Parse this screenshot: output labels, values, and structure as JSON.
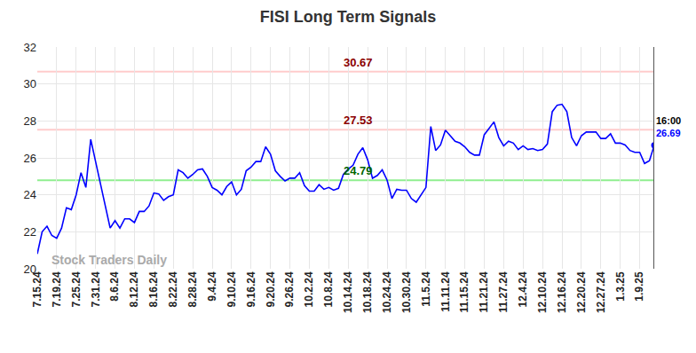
{
  "chart_data": {
    "type": "line",
    "title": "FISI Long Term Signals",
    "categories": [
      "7.15.24",
      null,
      null,
      null,
      "7.19.24",
      null,
      null,
      null,
      "7.25.24",
      null,
      null,
      null,
      "7.31.24",
      null,
      null,
      null,
      "8.6.24",
      null,
      null,
      null,
      "8.12.24",
      null,
      null,
      null,
      "8.16.24",
      null,
      null,
      null,
      "8.22.24",
      null,
      null,
      null,
      "8.28.24",
      null,
      null,
      null,
      "9.4.24",
      null,
      null,
      null,
      "9.10.24",
      null,
      null,
      null,
      "9.16.24",
      null,
      null,
      null,
      "9.20.24",
      null,
      null,
      null,
      "9.26.24",
      null,
      null,
      null,
      "10.2.24",
      null,
      null,
      null,
      "10.8.24",
      null,
      null,
      null,
      "10.14.24",
      null,
      null,
      null,
      "10.18.24",
      null,
      null,
      null,
      "10.24.24",
      null,
      null,
      null,
      "10.30.24",
      null,
      null,
      null,
      "11.5.24",
      null,
      null,
      null,
      "11.11.24",
      null,
      null,
      null,
      "11.15.24",
      null,
      null,
      null,
      "11.21.24",
      null,
      null,
      null,
      "11.27.24",
      null,
      null,
      null,
      "12.4.24",
      null,
      null,
      null,
      "12.10.24",
      null,
      null,
      null,
      "12.16.24",
      null,
      null,
      null,
      "12.20.24",
      null,
      null,
      null,
      "12.27.24",
      null,
      null,
      null,
      "1.3.25",
      null,
      null,
      null,
      "1.9.25",
      null,
      null,
      null
    ],
    "values": [
      20.8,
      22.0,
      22.3,
      21.8,
      21.65,
      22.2,
      23.3,
      23.2,
      24.0,
      25.2,
      24.4,
      27.0,
      25.8,
      24.6,
      23.5,
      22.2,
      22.6,
      22.2,
      22.7,
      22.7,
      22.5,
      23.1,
      23.1,
      23.4,
      24.1,
      24.05,
      23.7,
      23.9,
      24.0,
      25.35,
      25.2,
      24.9,
      25.1,
      25.35,
      25.4,
      25.0,
      24.4,
      24.25,
      24.0,
      24.45,
      24.7,
      24.0,
      24.3,
      25.3,
      25.5,
      25.8,
      25.8,
      26.6,
      26.2,
      25.3,
      25.0,
      24.75,
      24.9,
      24.9,
      25.2,
      24.5,
      24.2,
      24.2,
      24.55,
      24.3,
      24.4,
      24.25,
      24.35,
      25.1,
      25.4,
      25.6,
      26.2,
      26.55,
      25.9,
      24.9,
      25.05,
      25.35,
      24.8,
      23.8,
      24.3,
      24.25,
      24.25,
      23.8,
      23.6,
      24.0,
      24.4,
      27.7,
      26.4,
      26.7,
      27.5,
      27.2,
      26.9,
      26.8,
      26.6,
      26.3,
      26.15,
      26.15,
      27.25,
      27.6,
      27.95,
      27.1,
      26.65,
      26.9,
      26.8,
      26.45,
      26.65,
      26.45,
      26.5,
      26.4,
      26.45,
      26.75,
      28.5,
      28.85,
      28.9,
      28.5,
      27.1,
      26.65,
      27.2,
      27.4,
      27.4,
      27.4,
      27.05,
      27.05,
      27.3,
      26.8,
      26.8,
      26.7,
      26.4,
      26.3,
      26.3,
      25.7,
      25.85,
      26.69
    ],
    "color": "#0000ff",
    "ylim": [
      20,
      32
    ],
    "yticks": [
      20,
      22,
      24,
      26,
      28,
      30,
      32
    ],
    "grid": true,
    "hlines": [
      {
        "value": 30.67,
        "color": "#ffcccc",
        "label_color": "#8b0000"
      },
      {
        "value": 27.53,
        "color": "#ffcccc",
        "label_color": "#8b0000"
      },
      {
        "value": 24.79,
        "color": "#90ee90",
        "label_color": "#006400"
      }
    ],
    "last_label": {
      "time": "16:00",
      "value": 26.69,
      "time_color": "#000000",
      "value_color": "#0000ff"
    },
    "watermark": "Stock Traders Daily"
  }
}
